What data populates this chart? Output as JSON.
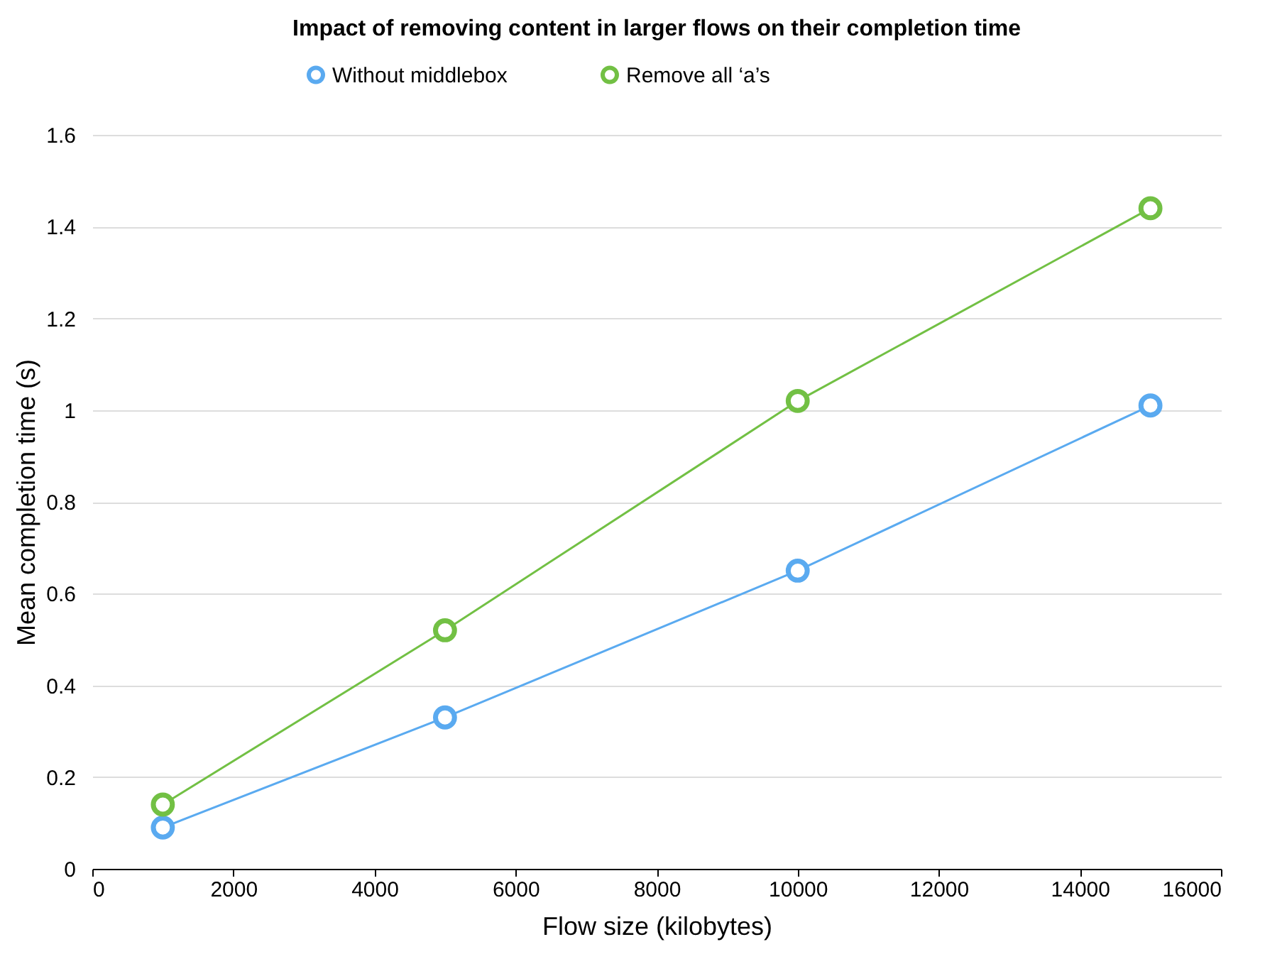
{
  "chart_data": {
    "type": "line",
    "title": "Impact of removing content in larger flows on their completion time",
    "xlabel": "Flow size (kilobytes)",
    "ylabel": "Mean completion time (s)",
    "x": [
      1000,
      5000,
      10000,
      15000
    ],
    "series": [
      {
        "name": "Without middlebox",
        "color": "#5aaaf0",
        "values": [
          0.09,
          0.33,
          0.65,
          1.01
        ]
      },
      {
        "name": "Remove all ‘a’s",
        "color": "#72c044",
        "values": [
          0.14,
          0.52,
          1.02,
          1.44
        ]
      }
    ],
    "xlim": [
      0,
      16000
    ],
    "xticks": [
      0,
      2000,
      4000,
      6000,
      8000,
      10000,
      12000,
      14000,
      16000
    ],
    "ylim": [
      0,
      1.6
    ],
    "yticks": [
      0,
      0.2,
      0.4,
      0.6,
      0.8,
      1,
      1.2,
      1.4,
      1.6
    ],
    "grid": "y",
    "legend": "top",
    "marker": "circle",
    "line_style": "solid"
  }
}
